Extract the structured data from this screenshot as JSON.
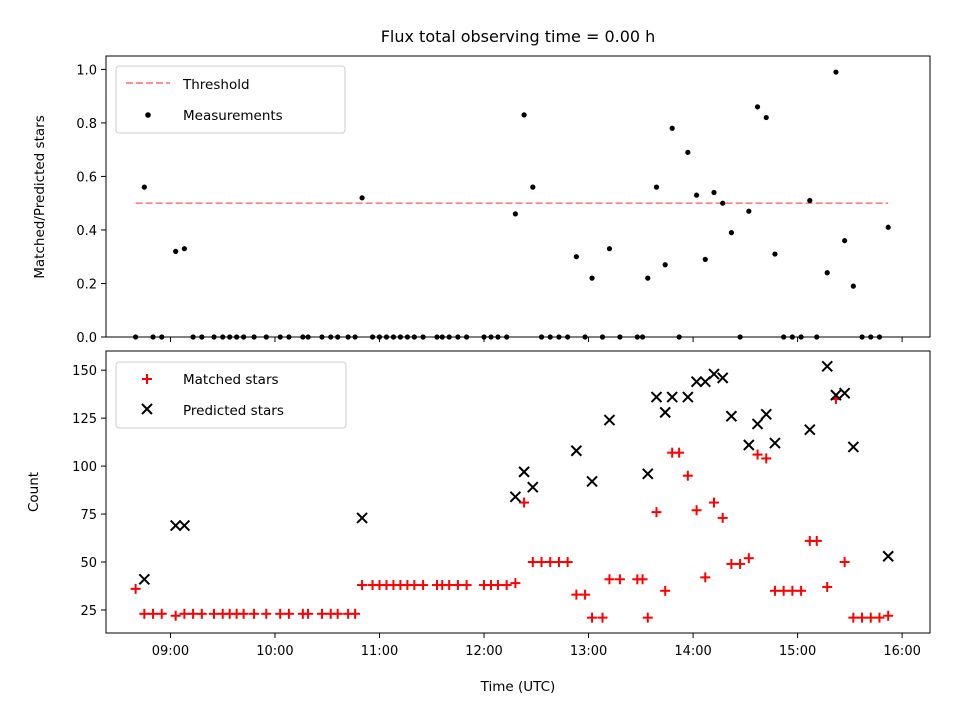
{
  "chart_data": [
    {
      "type": "scatter",
      "title": "Flux total observing time = 0.00 h",
      "xlabel": "",
      "ylabel": "Matched/Predicted stars",
      "ylim": [
        0,
        1.05
      ],
      "yticks": [
        "0.0",
        "0.2",
        "0.4",
        "0.6",
        "0.8",
        "1.0"
      ],
      "xticks": [
        "09:00",
        "10:00",
        "11:00",
        "12:00",
        "13:00",
        "14:00",
        "15:00",
        "16:00"
      ],
      "xlim": [
        "08:23",
        "16:16"
      ],
      "legend": {
        "position": "top-left",
        "entries": [
          {
            "label": "Threshold",
            "color": "#ff7f7f",
            "style": "dashed"
          },
          {
            "label": "Measurements",
            "color": "#000000",
            "style": "dot"
          }
        ]
      },
      "threshold": {
        "y": 0.5,
        "x_start": "08:40",
        "x_end": "15:52",
        "color": "#ff7f7f"
      },
      "series": [
        {
          "name": "Measurements",
          "color": "#000000",
          "points": [
            [
              "08:40",
              0.0
            ],
            [
              "08:45",
              0.56
            ],
            [
              "08:50",
              0.0
            ],
            [
              "08:55",
              0.0
            ],
            [
              "09:03",
              0.32
            ],
            [
              "09:08",
              0.33
            ],
            [
              "09:13",
              0.0
            ],
            [
              "09:18",
              0.0
            ],
            [
              "09:25",
              0.0
            ],
            [
              "09:30",
              0.0
            ],
            [
              "09:34",
              0.0
            ],
            [
              "09:38",
              0.0
            ],
            [
              "09:42",
              0.0
            ],
            [
              "09:48",
              0.0
            ],
            [
              "09:55",
              0.0
            ],
            [
              "10:03",
              0.0
            ],
            [
              "10:08",
              0.0
            ],
            [
              "10:16",
              0.0
            ],
            [
              "10:19",
              0.0
            ],
            [
              "10:27",
              0.0
            ],
            [
              "10:32",
              0.0
            ],
            [
              "10:36",
              0.0
            ],
            [
              "10:42",
              0.0
            ],
            [
              "10:46",
              0.0
            ],
            [
              "10:50",
              0.52
            ],
            [
              "10:56",
              0.0
            ],
            [
              "11:00",
              0.0
            ],
            [
              "11:04",
              0.0
            ],
            [
              "11:08",
              0.0
            ],
            [
              "11:12",
              0.0
            ],
            [
              "11:16",
              0.0
            ],
            [
              "11:20",
              0.0
            ],
            [
              "11:25",
              0.0
            ],
            [
              "11:33",
              0.0
            ],
            [
              "11:36",
              0.0
            ],
            [
              "11:40",
              0.0
            ],
            [
              "11:45",
              0.0
            ],
            [
              "11:50",
              0.0
            ],
            [
              "12:00",
              0.0
            ],
            [
              "12:04",
              0.0
            ],
            [
              "12:08",
              0.0
            ],
            [
              "12:13",
              0.0
            ],
            [
              "12:18",
              0.46
            ],
            [
              "12:23",
              0.83
            ],
            [
              "12:28",
              0.56
            ],
            [
              "12:33",
              0.0
            ],
            [
              "12:38",
              0.0
            ],
            [
              "12:43",
              0.0
            ],
            [
              "12:48",
              0.0
            ],
            [
              "12:53",
              0.3
            ],
            [
              "12:58",
              0.0
            ],
            [
              "13:02",
              0.22
            ],
            [
              "13:08",
              0.0
            ],
            [
              "13:12",
              0.33
            ],
            [
              "13:18",
              0.0
            ],
            [
              "13:28",
              0.0
            ],
            [
              "13:31",
              0.0
            ],
            [
              "13:34",
              0.22
            ],
            [
              "13:39",
              0.56
            ],
            [
              "13:44",
              0.27
            ],
            [
              "13:48",
              0.78
            ],
            [
              "13:52",
              0.0
            ],
            [
              "13:57",
              0.69
            ],
            [
              "14:02",
              0.53
            ],
            [
              "14:07",
              0.29
            ],
            [
              "14:12",
              0.54
            ],
            [
              "14:17",
              0.5
            ],
            [
              "14:22",
              0.39
            ],
            [
              "14:27",
              0.0
            ],
            [
              "14:32",
              0.47
            ],
            [
              "14:37",
              0.86
            ],
            [
              "14:42",
              0.82
            ],
            [
              "14:47",
              0.31
            ],
            [
              "14:52",
              0.0
            ],
            [
              "14:57",
              0.0
            ],
            [
              "15:02",
              0.0
            ],
            [
              "15:07",
              0.51
            ],
            [
              "15:11",
              0.0
            ],
            [
              "15:17",
              0.24
            ],
            [
              "15:22",
              0.99
            ],
            [
              "15:27",
              0.36
            ],
            [
              "15:32",
              0.19
            ],
            [
              "15:37",
              0.0
            ],
            [
              "15:42",
              0.0
            ],
            [
              "15:47",
              0.0
            ],
            [
              "15:52",
              0.41
            ]
          ]
        }
      ]
    },
    {
      "type": "scatter",
      "title": "",
      "xlabel": "Time (UTC)",
      "ylabel": "Count",
      "ylim": [
        13,
        160
      ],
      "yticks": [
        "25",
        "50",
        "75",
        "100",
        "125",
        "150"
      ],
      "xticks": [
        "09:00",
        "10:00",
        "11:00",
        "12:00",
        "13:00",
        "14:00",
        "15:00",
        "16:00"
      ],
      "xlim": [
        "08:23",
        "16:16"
      ],
      "legend": {
        "position": "top-left",
        "entries": [
          {
            "label": "Matched stars",
            "color": "#ff0000",
            "marker": "+"
          },
          {
            "label": "Predicted stars",
            "color": "#000000",
            "marker": "x"
          }
        ]
      },
      "series": [
        {
          "name": "Matched stars",
          "color": "#ff0000",
          "marker": "+",
          "points": [
            [
              "08:40",
              36
            ],
            [
              "08:45",
              23
            ],
            [
              "08:50",
              23
            ],
            [
              "08:55",
              23
            ],
            [
              "09:03",
              22
            ],
            [
              "09:08",
              23
            ],
            [
              "09:13",
              23
            ],
            [
              "09:18",
              23
            ],
            [
              "09:25",
              23
            ],
            [
              "09:30",
              23
            ],
            [
              "09:34",
              23
            ],
            [
              "09:38",
              23
            ],
            [
              "09:42",
              23
            ],
            [
              "09:48",
              23
            ],
            [
              "09:55",
              23
            ],
            [
              "10:03",
              23
            ],
            [
              "10:08",
              23
            ],
            [
              "10:16",
              23
            ],
            [
              "10:19",
              23
            ],
            [
              "10:27",
              23
            ],
            [
              "10:32",
              23
            ],
            [
              "10:36",
              23
            ],
            [
              "10:42",
              23
            ],
            [
              "10:46",
              23
            ],
            [
              "10:50",
              38
            ],
            [
              "10:56",
              38
            ],
            [
              "11:00",
              38
            ],
            [
              "11:04",
              38
            ],
            [
              "11:08",
              38
            ],
            [
              "11:12",
              38
            ],
            [
              "11:16",
              38
            ],
            [
              "11:20",
              38
            ],
            [
              "11:25",
              38
            ],
            [
              "11:33",
              38
            ],
            [
              "11:36",
              38
            ],
            [
              "11:40",
              38
            ],
            [
              "11:45",
              38
            ],
            [
              "11:50",
              38
            ],
            [
              "12:00",
              38
            ],
            [
              "12:04",
              38
            ],
            [
              "12:08",
              38
            ],
            [
              "12:13",
              38
            ],
            [
              "12:18",
              39
            ],
            [
              "12:23",
              81
            ],
            [
              "12:28",
              50
            ],
            [
              "12:33",
              50
            ],
            [
              "12:38",
              50
            ],
            [
              "12:43",
              50
            ],
            [
              "12:48",
              50
            ],
            [
              "12:53",
              33
            ],
            [
              "12:58",
              33
            ],
            [
              "13:02",
              21
            ],
            [
              "13:08",
              21
            ],
            [
              "13:12",
              41
            ],
            [
              "13:18",
              41
            ],
            [
              "13:28",
              41
            ],
            [
              "13:31",
              41
            ],
            [
              "13:34",
              21
            ],
            [
              "13:39",
              76
            ],
            [
              "13:44",
              35
            ],
            [
              "13:48",
              107
            ],
            [
              "13:52",
              107
            ],
            [
              "13:57",
              95
            ],
            [
              "14:02",
              77
            ],
            [
              "14:07",
              42
            ],
            [
              "14:12",
              81
            ],
            [
              "14:17",
              73
            ],
            [
              "14:22",
              49
            ],
            [
              "14:27",
              49
            ],
            [
              "14:32",
              52
            ],
            [
              "14:37",
              106
            ],
            [
              "14:42",
              104
            ],
            [
              "14:47",
              35
            ],
            [
              "14:52",
              35
            ],
            [
              "14:57",
              35
            ],
            [
              "15:02",
              35
            ],
            [
              "15:07",
              61
            ],
            [
              "15:11",
              61
            ],
            [
              "15:17",
              37
            ],
            [
              "15:22",
              135
            ],
            [
              "15:27",
              50
            ],
            [
              "15:32",
              21
            ],
            [
              "15:37",
              21
            ],
            [
              "15:42",
              21
            ],
            [
              "15:47",
              21
            ],
            [
              "15:52",
              22
            ]
          ]
        },
        {
          "name": "Predicted stars",
          "color": "#000000",
          "marker": "x",
          "points": [
            [
              "08:45",
              41
            ],
            [
              "09:03",
              69
            ],
            [
              "09:08",
              69
            ],
            [
              "10:50",
              73
            ],
            [
              "12:18",
              84
            ],
            [
              "12:23",
              97
            ],
            [
              "12:28",
              89
            ],
            [
              "12:53",
              108
            ],
            [
              "13:02",
              92
            ],
            [
              "13:12",
              124
            ],
            [
              "13:34",
              96
            ],
            [
              "13:39",
              136
            ],
            [
              "13:44",
              128
            ],
            [
              "13:48",
              136
            ],
            [
              "13:57",
              136
            ],
            [
              "14:02",
              144
            ],
            [
              "14:07",
              144
            ],
            [
              "14:12",
              148
            ],
            [
              "14:17",
              146
            ],
            [
              "14:22",
              126
            ],
            [
              "14:32",
              111
            ],
            [
              "14:37",
              122
            ],
            [
              "14:42",
              127
            ],
            [
              "14:47",
              112
            ],
            [
              "15:07",
              119
            ],
            [
              "15:17",
              152
            ],
            [
              "15:22",
              137
            ],
            [
              "15:27",
              138
            ],
            [
              "15:32",
              110
            ],
            [
              "15:52",
              53
            ]
          ]
        }
      ]
    }
  ]
}
